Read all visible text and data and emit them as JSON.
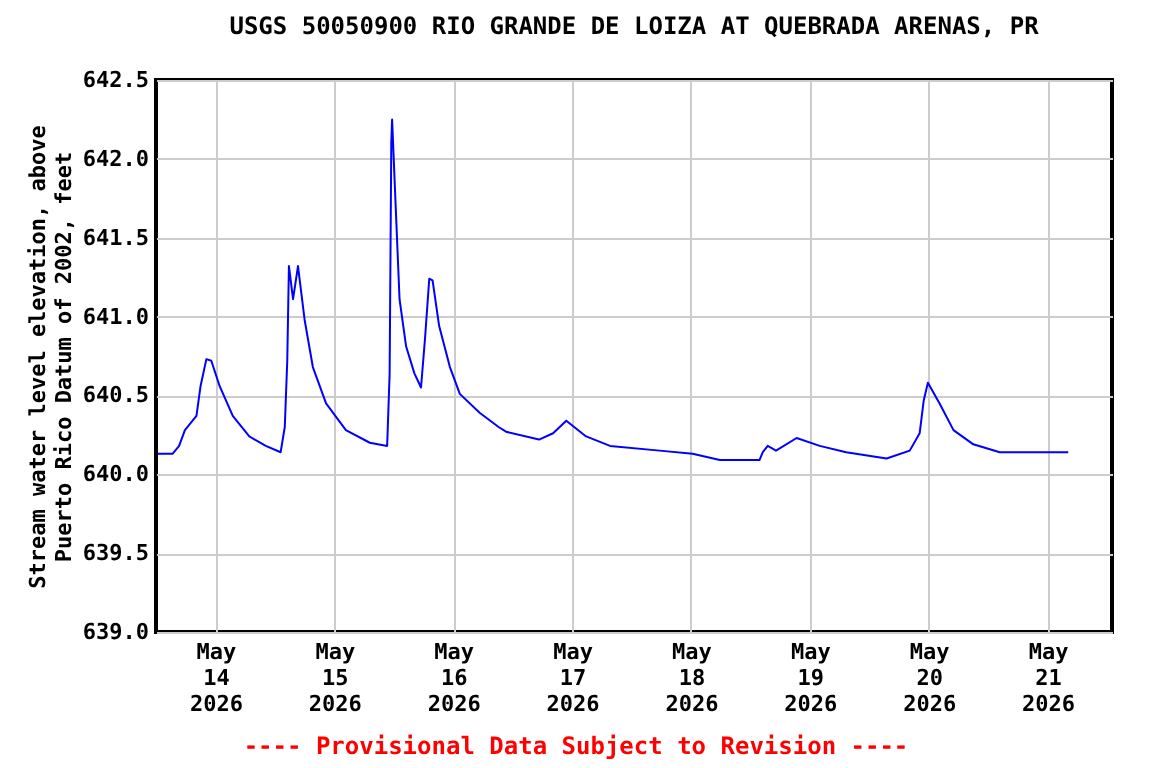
{
  "chart_data": {
    "type": "line",
    "title": "USGS 50050900 RIO GRANDE DE LOIZA AT QUEBRADA ARENAS, PR",
    "ylabel": "Stream water level elevation, above\nPuerto Rico Datum of 2002, feet",
    "annotations": [
      "---- Provisional Data Subject to Revision ----"
    ],
    "x": [
      "2026-05-13T12:20",
      "2026-05-13T15:20",
      "2026-05-13T16:40",
      "2026-05-13T17:50",
      "2026-05-13T20:10",
      "2026-05-13T21:00",
      "2026-05-13T22:10",
      "2026-05-13T23:10",
      "2026-05-14T00:50",
      "2026-05-14T03:30",
      "2026-05-14T06:50",
      "2026-05-14T10:10",
      "2026-05-14T13:10",
      "2026-05-14T14:00",
      "2026-05-14T14:30",
      "2026-05-14T14:50",
      "2026-05-14T15:40",
      "2026-05-14T16:40",
      "2026-05-14T18:00",
      "2026-05-14T19:40",
      "2026-05-14T22:20",
      "2026-05-15T02:20",
      "2026-05-15T07:10",
      "2026-05-15T10:40",
      "2026-05-15T11:10",
      "2026-05-15T11:30",
      "2026-05-15T11:40",
      "2026-05-15T12:20",
      "2026-05-15T13:10",
      "2026-05-15T14:30",
      "2026-05-15T16:10",
      "2026-05-15T17:30",
      "2026-05-15T18:20",
      "2026-05-15T19:10",
      "2026-05-15T19:50",
      "2026-05-15T21:10",
      "2026-05-15T23:20",
      "2026-05-16T01:20",
      "2026-05-16T05:20",
      "2026-05-16T09:10",
      "2026-05-16T10:40",
      "2026-05-16T17:20",
      "2026-05-16T20:10",
      "2026-05-16T22:50",
      "2026-05-17T02:50",
      "2026-05-17T07:40",
      "2026-05-17T17:40",
      "2026-05-18T00:20",
      "2026-05-18T05:50",
      "2026-05-18T13:50",
      "2026-05-18T14:30",
      "2026-05-18T15:30",
      "2026-05-18T17:10",
      "2026-05-18T21:20",
      "2026-05-19T02:00",
      "2026-05-19T07:20",
      "2026-05-19T15:30",
      "2026-05-19T20:10",
      "2026-05-19T22:10",
      "2026-05-19T23:00",
      "2026-05-19T23:50",
      "2026-05-20T02:10",
      "2026-05-20T05:00",
      "2026-05-20T09:00",
      "2026-05-20T14:20",
      "2026-05-21T04:10"
    ],
    "series": [
      {
        "color": "#0000ff",
        "values": [
          640.13,
          640.13,
          640.18,
          640.28,
          640.37,
          640.56,
          640.73,
          640.72,
          640.56,
          640.37,
          640.24,
          640.18,
          640.14,
          640.3,
          640.72,
          641.32,
          641.11,
          641.32,
          640.98,
          640.68,
          640.45,
          640.28,
          640.2,
          640.18,
          640.64,
          642.1,
          642.25,
          641.74,
          641.11,
          640.81,
          640.64,
          640.55,
          640.87,
          641.24,
          641.23,
          640.94,
          640.68,
          640.51,
          640.39,
          640.3,
          640.27,
          640.22,
          640.26,
          640.34,
          640.24,
          640.18,
          640.15,
          640.13,
          640.09,
          640.09,
          640.14,
          640.18,
          640.15,
          640.23,
          640.18,
          640.14,
          640.1,
          640.15,
          640.26,
          640.47,
          640.58,
          640.45,
          640.28,
          640.19,
          640.14,
          640.14
        ]
      }
    ],
    "xlim": [
      "2026-05-13T12:00",
      "2026-05-21T13:00"
    ],
    "xticks": [
      {
        "value": "2026-05-14",
        "label": "May\n14\n2026"
      },
      {
        "value": "2026-05-15",
        "label": "May\n15\n2026"
      },
      {
        "value": "2026-05-16",
        "label": "May\n16\n2026"
      },
      {
        "value": "2026-05-17",
        "label": "May\n17\n2026"
      },
      {
        "value": "2026-05-18",
        "label": "May\n18\n2026"
      },
      {
        "value": "2026-05-19",
        "label": "May\n19\n2026"
      },
      {
        "value": "2026-05-20",
        "label": "May\n20\n2026"
      },
      {
        "value": "2026-05-21",
        "label": "May\n21\n2026"
      }
    ],
    "ylim": [
      639.0,
      642.5
    ],
    "yticks": [
      {
        "value": 639.0,
        "label": "639.0"
      },
      {
        "value": 639.5,
        "label": "639.5"
      },
      {
        "value": 640.0,
        "label": "640.0"
      },
      {
        "value": 640.5,
        "label": "640.5"
      },
      {
        "value": 641.0,
        "label": "641.0"
      },
      {
        "value": 641.5,
        "label": "641.5"
      },
      {
        "value": 642.0,
        "label": "642.0"
      },
      {
        "value": 642.5,
        "label": "642.5"
      }
    ],
    "grid": true
  }
}
